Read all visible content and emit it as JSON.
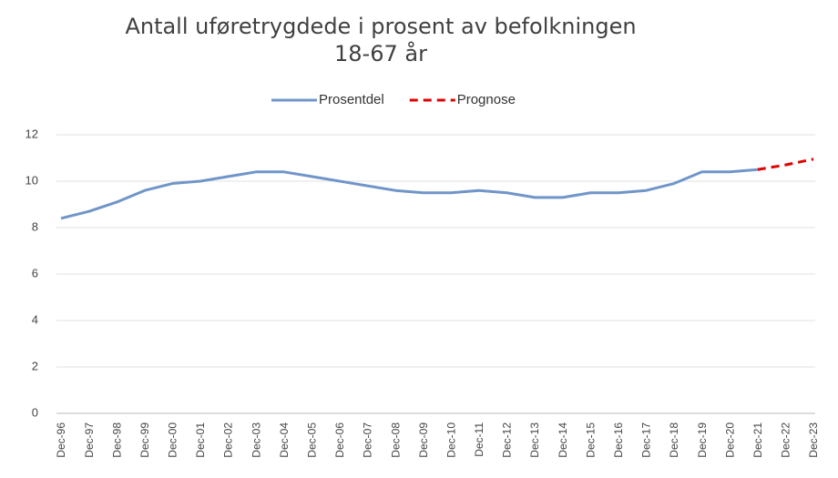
{
  "chart_data": {
    "type": "line",
    "title": [
      "Antall uføretrygdede i prosent av befolkningen",
      "18-67 år"
    ],
    "categories": [
      "Dec-96",
      "Dec-97",
      "Dec-98",
      "Dec-99",
      "Dec-00",
      "Dec-01",
      "Dec-02",
      "Dec-03",
      "Dec-04",
      "Dec-05",
      "Dec-06",
      "Dec-07",
      "Dec-08",
      "Dec-09",
      "Dec-10",
      "Dec-11",
      "Dec-12",
      "Dec-13",
      "Dec-14",
      "Dec-15",
      "Dec-16",
      "Dec-17",
      "Dec-18",
      "Dec-19",
      "Dec-20",
      "Dec-21",
      "Dec-22",
      "Dec-23"
    ],
    "series": [
      {
        "name": "Prosentdel",
        "color": "#7095c9",
        "dash": false,
        "values": [
          8.4,
          8.7,
          9.1,
          9.6,
          9.9,
          10.0,
          10.2,
          10.4,
          10.4,
          10.2,
          10.0,
          9.8,
          9.6,
          9.5,
          9.5,
          9.6,
          9.5,
          9.3,
          9.3,
          9.5,
          9.5,
          9.6,
          9.9,
          10.4,
          10.4,
          10.5,
          null,
          null
        ]
      },
      {
        "name": "Prognose",
        "color": "#e00000",
        "dash": true,
        "values": [
          null,
          null,
          null,
          null,
          null,
          null,
          null,
          null,
          null,
          null,
          null,
          null,
          null,
          null,
          null,
          null,
          null,
          null,
          null,
          null,
          null,
          null,
          null,
          null,
          null,
          10.5,
          10.7,
          10.95
        ]
      }
    ],
    "ylim": [
      0,
      12
    ],
    "yticks": [
      0,
      2,
      4,
      6,
      8,
      10,
      12
    ],
    "grid": true,
    "legend": "top"
  }
}
